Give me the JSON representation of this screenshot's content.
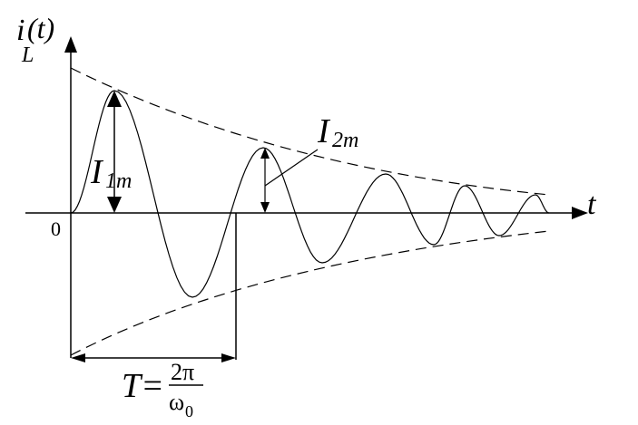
{
  "y_axis_label": {
    "base": "i",
    "subscript": "L",
    "suffix": "(t)"
  },
  "x_axis_label": "t",
  "origin": "0",
  "annotations": [
    {
      "base": "I",
      "subscript": "1m"
    },
    {
      "base": "I",
      "subscript": "2m"
    }
  ],
  "period": {
    "lhs": "T=",
    "numerator": "2π",
    "denominator": "ω",
    "denominator_subscript": "0"
  }
}
